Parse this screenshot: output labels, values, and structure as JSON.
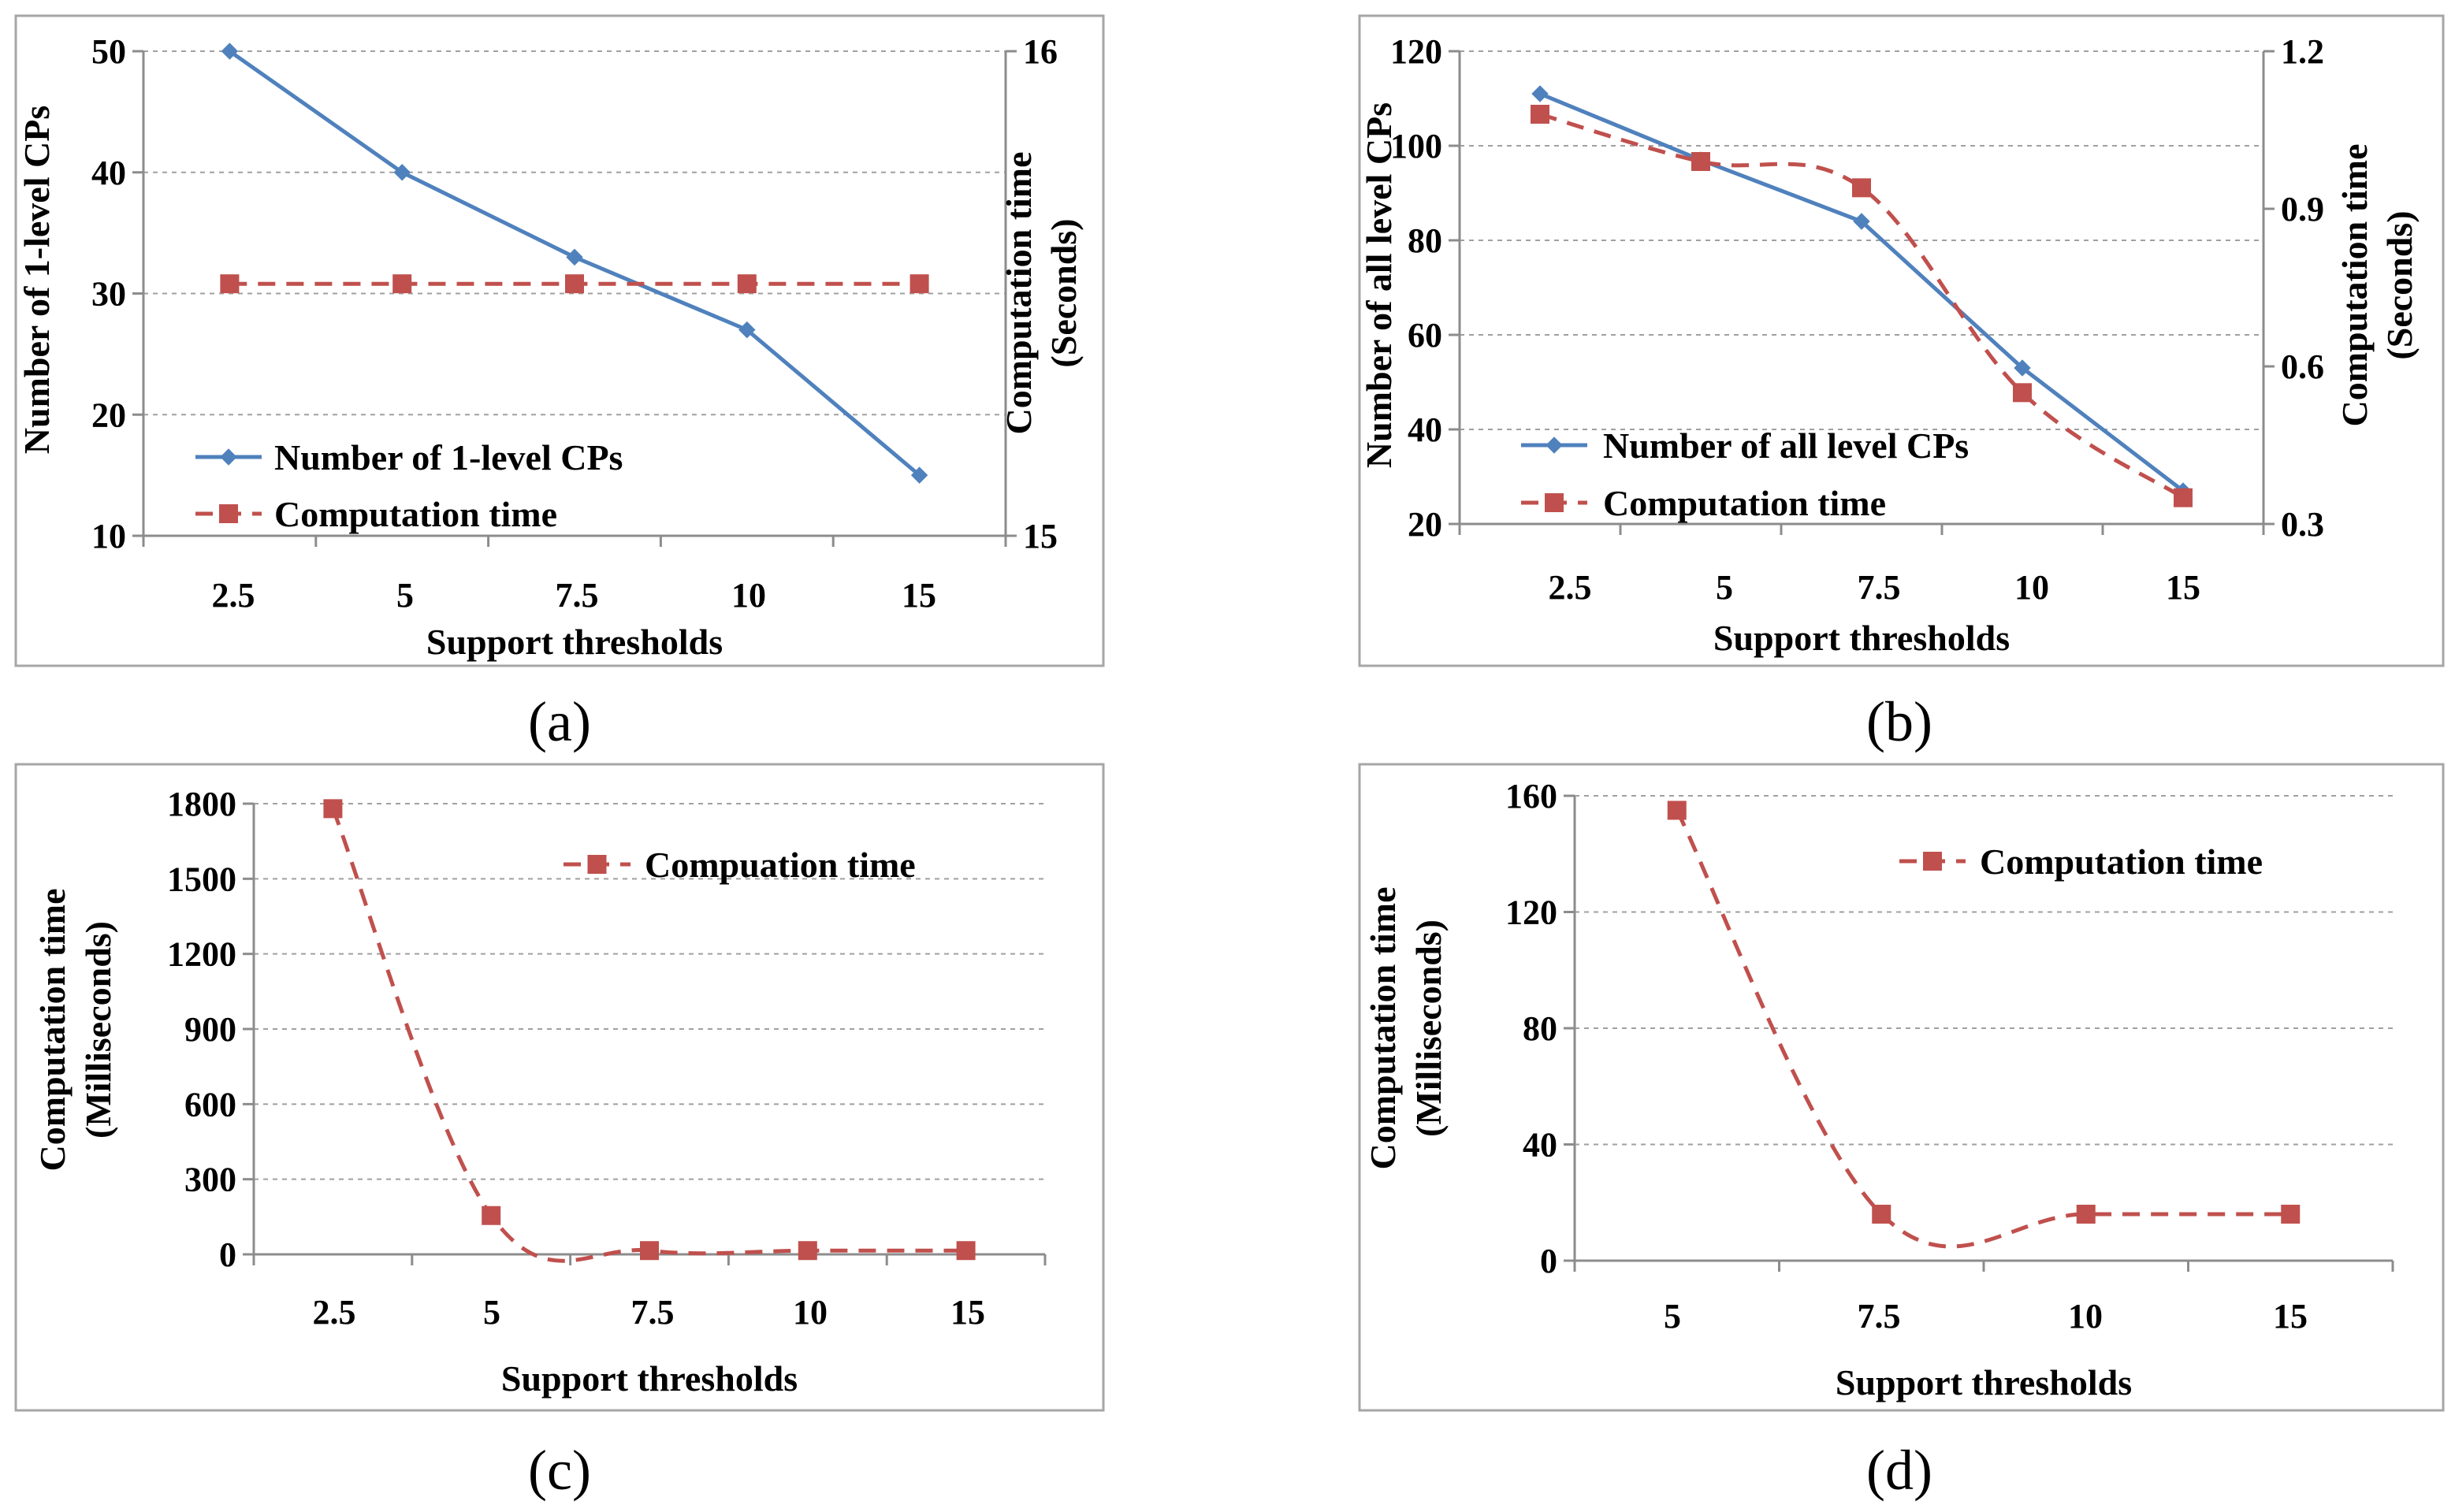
{
  "colors": {
    "blue": "#4f81bd",
    "red": "#c0504d"
  },
  "chart_data": [
    {
      "id": "a",
      "type": "line",
      "caption": "(a)",
      "categories": [
        "2.5",
        "5",
        "7.5",
        "10",
        "15"
      ],
      "xlabel": "Support thresholds",
      "ylabel": "Number of 1-level CPs",
      "y2label": [
        "Computation time",
        "(Seconds)"
      ],
      "ylim": [
        10,
        50
      ],
      "yticks": [
        "10",
        "20",
        "30",
        "40",
        "50"
      ],
      "y2lim": [
        15,
        16
      ],
      "y2ticks": [
        "15",
        "16"
      ],
      "series": [
        {
          "name": "Number of 1-level CPs",
          "axis": "left",
          "style": "blue",
          "values": [
            50,
            40,
            33,
            27,
            15
          ]
        },
        {
          "name": "Computation time",
          "axis": "right",
          "style": "red",
          "values": [
            15.52,
            15.52,
            15.52,
            15.52,
            15.52
          ]
        }
      ],
      "legend": "bottom-left"
    },
    {
      "id": "b",
      "type": "line",
      "caption": "(b)",
      "categories": [
        "2.5",
        "5",
        "7.5",
        "10",
        "15"
      ],
      "xlabel": "Support thresholds",
      "ylabel": "Number of  all level CPs",
      "y2label": [
        "Computation time",
        "(Seconds)"
      ],
      "ylim": [
        20,
        120
      ],
      "yticks": [
        "20",
        "40",
        "60",
        "80",
        "100",
        "120"
      ],
      "y2lim": [
        0.3,
        1.2
      ],
      "y2ticks": [
        "0.3",
        "0.6",
        "0.9",
        "1.2"
      ],
      "series": [
        {
          "name": "Number of all level CPs",
          "axis": "left",
          "style": "blue",
          "values": [
            111,
            97,
            84,
            53,
            27
          ]
        },
        {
          "name": "Computation time",
          "axis": "right",
          "style": "red",
          "values": [
            1.08,
            0.99,
            0.94,
            0.55,
            0.35
          ]
        }
      ],
      "legend": "bottom-left"
    },
    {
      "id": "c",
      "type": "line",
      "caption": "(c)",
      "categories": [
        "2.5",
        "5",
        "7.5",
        "10",
        "15"
      ],
      "xlabel": "Support thresholds",
      "ylabel": [
        "Computation time",
        "(Milliseconds)"
      ],
      "ylim": [
        0,
        1800
      ],
      "yticks": [
        "0",
        "300",
        "600",
        "900",
        "1200",
        "1500",
        "1800"
      ],
      "series": [
        {
          "name": "Compuation time",
          "axis": "left",
          "style": "red",
          "values": [
            1780,
            155,
            15,
            15,
            15
          ]
        }
      ],
      "legend": "top-right"
    },
    {
      "id": "d",
      "type": "line",
      "caption": "(d)",
      "categories": [
        "5",
        "7.5",
        "10",
        "15"
      ],
      "xlabel": "Support thresholds",
      "ylabel": [
        "Computation time",
        "(Milliseconds)"
      ],
      "ylim": [
        0,
        160
      ],
      "yticks": [
        "0",
        "40",
        "80",
        "120",
        "160"
      ],
      "series": [
        {
          "name": "Computation time",
          "axis": "left",
          "style": "red",
          "values": [
            155,
            16,
            16,
            16
          ]
        }
      ],
      "legend": "top-right"
    }
  ]
}
